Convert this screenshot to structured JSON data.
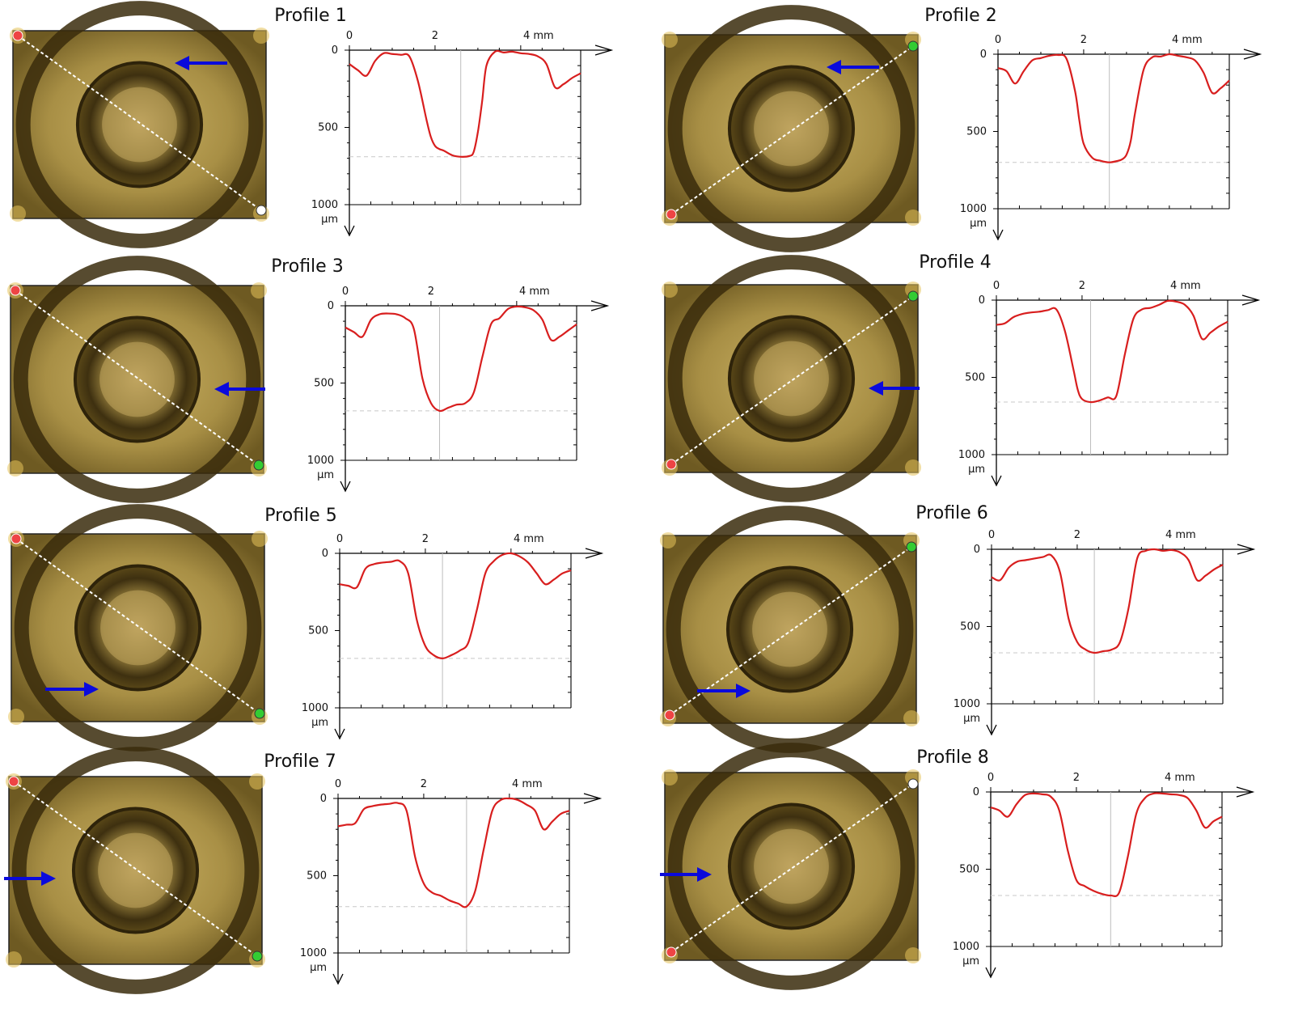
{
  "colors": {
    "profile_line": "#d81e1e",
    "marker_arrow": "#0a0adc",
    "photo_base": "#a58f45",
    "start_dot": "#ee4444",
    "end_dot_green": "#33cc33",
    "end_dot_white": "#ffffff"
  },
  "chart_data": [
    {
      "type": "line",
      "title": "Profile 1",
      "xlabel": "mm",
      "ylabel": "µm",
      "xlim": [
        0,
        5.4
      ],
      "ylim": [
        0,
        1000
      ],
      "x_ticks": [
        "0",
        "2",
        "4 mm"
      ],
      "y_ticks": [
        "0",
        "500",
        "1000"
      ],
      "diagonal": "tl-br",
      "end_dot": "white",
      "arrow": {
        "pos": "top",
        "dir": "left"
      },
      "series": [
        {
          "x": [
            0,
            0.2,
            0.4,
            0.6,
            0.8,
            1.0,
            1.2,
            1.4,
            1.6,
            1.8,
            1.9,
            2.0,
            2.1,
            2.2,
            2.4,
            2.6,
            2.8,
            2.9,
            3.0,
            3.1,
            3.2,
            3.4,
            3.6,
            3.8,
            4.0,
            4.2,
            4.4,
            4.6,
            4.8,
            5.0,
            5.2,
            5.4
          ],
          "y": [
            90,
            130,
            165,
            70,
            20,
            25,
            30,
            40,
            200,
            450,
            560,
            620,
            640,
            650,
            680,
            690,
            685,
            660,
            530,
            330,
            100,
            10,
            15,
            10,
            20,
            25,
            40,
            90,
            240,
            220,
            180,
            150
          ]
        }
      ]
    },
    {
      "type": "line",
      "title": "Profile 2",
      "xlabel": "mm",
      "ylabel": "µm",
      "xlim": [
        0,
        5.4
      ],
      "ylim": [
        0,
        1000
      ],
      "x_ticks": [
        "0",
        "2",
        "4 mm"
      ],
      "y_ticks": [
        "0",
        "500",
        "1000"
      ],
      "diagonal": "bl-tr",
      "end_dot": "green",
      "arrow": {
        "pos": "top",
        "dir": "left"
      },
      "series": [
        {
          "x": [
            0,
            0.2,
            0.4,
            0.6,
            0.8,
            1.0,
            1.2,
            1.4,
            1.6,
            1.8,
            1.9,
            2.0,
            2.2,
            2.4,
            2.6,
            2.8,
            2.9,
            3.0,
            3.1,
            3.2,
            3.4,
            3.6,
            3.8,
            4.0,
            4.2,
            4.4,
            4.6,
            4.8,
            5.0,
            5.2,
            5.4
          ],
          "y": [
            90,
            110,
            190,
            110,
            40,
            25,
            10,
            5,
            30,
            240,
            430,
            580,
            670,
            690,
            700,
            690,
            680,
            650,
            560,
            380,
            100,
            20,
            15,
            0,
            10,
            20,
            40,
            120,
            250,
            220,
            170
          ]
        }
      ]
    },
    {
      "type": "line",
      "title": "Profile 3",
      "xlabel": "mm",
      "ylabel": "µm",
      "xlim": [
        0,
        5.4
      ],
      "ylim": [
        0,
        1000
      ],
      "x_ticks": [
        "0",
        "2",
        "4 mm"
      ],
      "y_ticks": [
        "0",
        "500",
        "1000"
      ],
      "diagonal": "tl-br",
      "end_dot": "green",
      "arrow": {
        "pos": "right",
        "dir": "left"
      },
      "series": [
        {
          "x": [
            0,
            0.2,
            0.4,
            0.6,
            0.8,
            1.0,
            1.2,
            1.4,
            1.6,
            1.8,
            2.0,
            2.2,
            2.4,
            2.6,
            2.8,
            3.0,
            3.2,
            3.4,
            3.6,
            3.8,
            4.0,
            4.2,
            4.4,
            4.6,
            4.8,
            5.0,
            5.2,
            5.4
          ],
          "y": [
            140,
            170,
            200,
            90,
            55,
            50,
            55,
            80,
            150,
            470,
            630,
            680,
            660,
            640,
            630,
            560,
            330,
            120,
            80,
            20,
            5,
            10,
            30,
            90,
            220,
            200,
            160,
            120
          ]
        }
      ]
    },
    {
      "type": "line",
      "title": "Profile 4",
      "xlabel": "mm",
      "ylabel": "µm",
      "xlim": [
        0,
        5.4
      ],
      "ylim": [
        0,
        1000
      ],
      "x_ticks": [
        "0",
        "2",
        "4 mm"
      ],
      "y_ticks": [
        "0",
        "500",
        "1000"
      ],
      "diagonal": "bl-tr",
      "end_dot": "green",
      "arrow": {
        "pos": "right",
        "dir": "left"
      },
      "series": [
        {
          "x": [
            0,
            0.2,
            0.4,
            0.6,
            0.8,
            1.0,
            1.2,
            1.4,
            1.6,
            1.8,
            1.9,
            2.0,
            2.2,
            2.4,
            2.6,
            2.8,
            3.0,
            3.2,
            3.4,
            3.6,
            3.8,
            4.0,
            4.2,
            4.4,
            4.6,
            4.8,
            5.0,
            5.2,
            5.4
          ],
          "y": [
            160,
            150,
            110,
            90,
            80,
            75,
            65,
            60,
            200,
            450,
            580,
            640,
            660,
            650,
            630,
            620,
            350,
            120,
            60,
            50,
            30,
            5,
            10,
            30,
            100,
            250,
            210,
            170,
            140
          ]
        }
      ]
    },
    {
      "type": "line",
      "title": "Profile 5",
      "xlabel": "mm",
      "ylabel": "µm",
      "xlim": [
        0,
        5.4
      ],
      "ylim": [
        0,
        1000
      ],
      "x_ticks": [
        "0",
        "2",
        "4 mm"
      ],
      "y_ticks": [
        "0",
        "500",
        "1000"
      ],
      "diagonal": "tl-br",
      "end_dot": "green",
      "arrow": {
        "pos": "bottom",
        "dir": "right"
      },
      "series": [
        {
          "x": [
            0,
            0.2,
            0.4,
            0.6,
            0.8,
            1.0,
            1.2,
            1.4,
            1.6,
            1.8,
            2.0,
            2.2,
            2.4,
            2.6,
            2.8,
            3.0,
            3.2,
            3.4,
            3.6,
            3.8,
            4.0,
            4.2,
            4.4,
            4.6,
            4.8,
            5.0,
            5.2,
            5.4
          ],
          "y": [
            200,
            210,
            220,
            100,
            70,
            60,
            55,
            50,
            130,
            430,
            600,
            660,
            680,
            660,
            630,
            580,
            370,
            130,
            50,
            10,
            0,
            20,
            60,
            130,
            200,
            170,
            130,
            110
          ]
        }
      ]
    },
    {
      "type": "line",
      "title": "Profile 6",
      "xlabel": "mm",
      "ylabel": "µm",
      "xlim": [
        0,
        5.4
      ],
      "ylim": [
        0,
        1000
      ],
      "x_ticks": [
        "0",
        "2",
        "4 mm"
      ],
      "y_ticks": [
        "0",
        "500",
        "1000"
      ],
      "diagonal": "bl-tr",
      "end_dot": "green",
      "arrow": {
        "pos": "bottom",
        "dir": "right"
      },
      "series": [
        {
          "x": [
            0,
            0.2,
            0.4,
            0.6,
            0.8,
            1.0,
            1.2,
            1.4,
            1.6,
            1.8,
            2.0,
            2.2,
            2.4,
            2.6,
            2.8,
            3.0,
            3.2,
            3.4,
            3.6,
            3.8,
            4.0,
            4.2,
            4.4,
            4.6,
            4.8,
            5.0,
            5.2,
            5.4
          ],
          "y": [
            180,
            200,
            120,
            80,
            70,
            60,
            50,
            40,
            150,
            450,
            600,
            650,
            670,
            660,
            650,
            600,
            380,
            60,
            10,
            0,
            10,
            5,
            20,
            70,
            200,
            170,
            130,
            100
          ]
        }
      ]
    },
    {
      "type": "line",
      "title": "Profile 7",
      "xlabel": "mm",
      "ylabel": "µm",
      "xlim": [
        0,
        5.4
      ],
      "ylim": [
        0,
        1000
      ],
      "x_ticks": [
        "0",
        "2",
        "4 mm"
      ],
      "y_ticks": [
        "0",
        "500",
        "1000"
      ],
      "diagonal": "tl-br",
      "end_dot": "green",
      "arrow": {
        "pos": "left",
        "dir": "right"
      },
      "series": [
        {
          "x": [
            0,
            0.2,
            0.4,
            0.6,
            0.8,
            1.0,
            1.2,
            1.4,
            1.6,
            1.8,
            2.0,
            2.2,
            2.4,
            2.6,
            2.8,
            3.0,
            3.2,
            3.4,
            3.6,
            3.8,
            4.0,
            4.2,
            4.4,
            4.6,
            4.8,
            5.0,
            5.2,
            5.4
          ],
          "y": [
            180,
            170,
            160,
            70,
            50,
            40,
            35,
            30,
            80,
            380,
            550,
            610,
            630,
            660,
            680,
            700,
            600,
            330,
            80,
            10,
            0,
            10,
            40,
            80,
            200,
            150,
            100,
            80
          ]
        }
      ]
    },
    {
      "type": "line",
      "title": "Profile 8",
      "xlabel": "mm",
      "ylabel": "µm",
      "xlim": [
        0,
        5.4
      ],
      "ylim": [
        0,
        1000
      ],
      "x_ticks": [
        "0",
        "2",
        "4 mm"
      ],
      "y_ticks": [
        "0",
        "500",
        "1000"
      ],
      "diagonal": "bl-tr",
      "end_dot": "white",
      "arrow": {
        "pos": "left",
        "dir": "right"
      },
      "series": [
        {
          "x": [
            0,
            0.2,
            0.4,
            0.6,
            0.8,
            1.0,
            1.2,
            1.4,
            1.6,
            1.8,
            2.0,
            2.2,
            2.4,
            2.6,
            2.8,
            3.0,
            3.2,
            3.4,
            3.6,
            3.8,
            4.0,
            4.2,
            4.4,
            4.6,
            4.8,
            5.0,
            5.2,
            5.4
          ],
          "y": [
            100,
            120,
            160,
            80,
            20,
            10,
            15,
            30,
            120,
            380,
            570,
            610,
            640,
            660,
            670,
            650,
            420,
            140,
            40,
            10,
            10,
            15,
            20,
            40,
            120,
            230,
            190,
            160
          ]
        }
      ]
    }
  ]
}
